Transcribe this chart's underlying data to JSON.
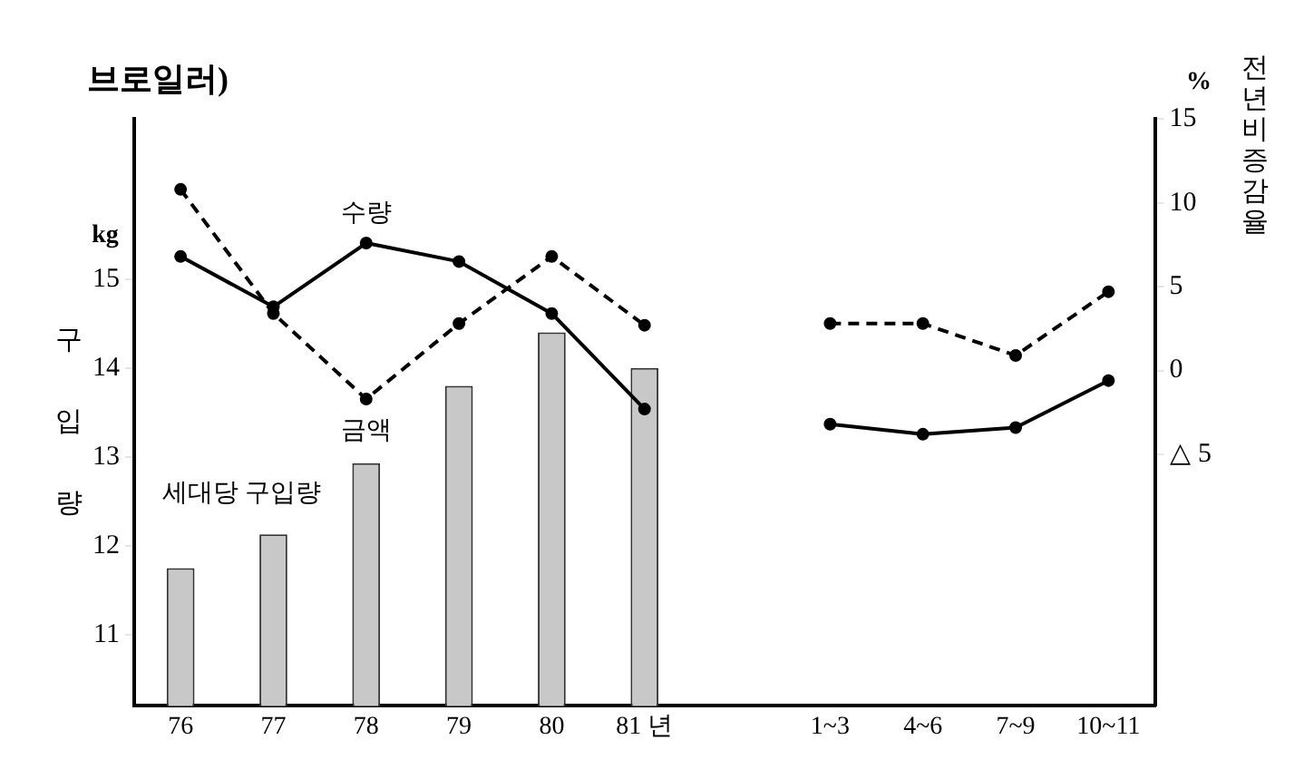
{
  "chart_data": {
    "type": "bar",
    "title": "브로일러)",
    "ylabel": "구입량",
    "y2label": "전년비증감율",
    "annotations": [
      "kg",
      "%"
    ],
    "categories": [
      "76",
      "77",
      "78",
      "79",
      "80",
      "81 년",
      null,
      "1~3",
      "4~6",
      "7~9",
      "10~11"
    ],
    "series": [
      {
        "name": "세대당 구입량",
        "color": "#c8c8c8",
        "values": [
          11.75,
          12.13,
          12.93,
          13.8,
          14.4,
          14.0,
          null,
          null,
          null,
          null,
          null
        ]
      },
      {
        "name": "수량",
        "type": "line",
        "axis": "y2",
        "color": "#000000",
        "line_style": "solid",
        "values": [
          6.8,
          3.8,
          7.6,
          6.5,
          3.4,
          -2.3,
          null,
          -3.2,
          -3.8,
          -3.4,
          -0.6
        ]
      },
      {
        "name": "금액",
        "type": "line",
        "axis": "y2",
        "color": "#000000",
        "line_style": "dashed",
        "values": [
          10.8,
          3.4,
          -1.7,
          2.8,
          6.8,
          2.7,
          null,
          2.8,
          2.8,
          0.9,
          4.7
        ]
      }
    ],
    "ylim": [
      10.2,
      16.8
    ],
    "yticks": [
      11,
      12,
      13,
      14,
      15
    ],
    "y2lim": [
      -20,
      15
    ],
    "y2ticks": [
      15,
      10,
      5,
      0,
      {
        "value": -5,
        "label": "△ 5"
      }
    ],
    "grid": false,
    "legend": false,
    "marker": "circle"
  }
}
